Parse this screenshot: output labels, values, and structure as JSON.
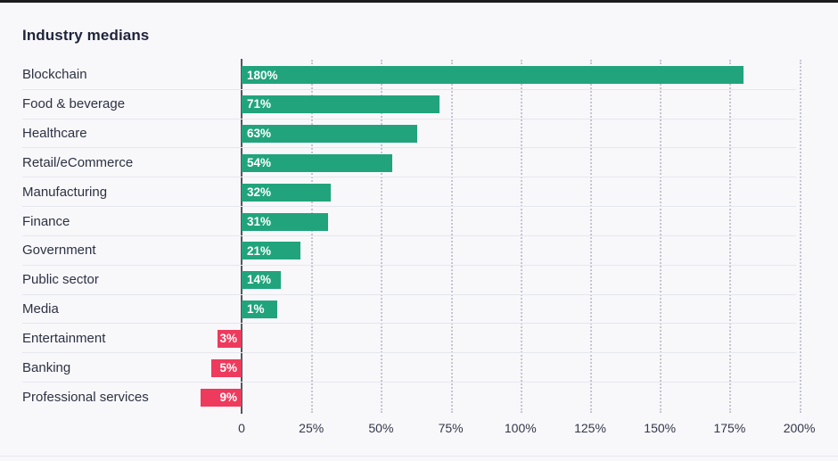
{
  "chart_data": {
    "type": "bar",
    "orientation": "horizontal",
    "title": "Industry medians",
    "categories": [
      "Blockchain",
      "Food & beverage",
      "Healthcare",
      "Retail/eCommerce",
      "Manufacturing",
      "Finance",
      "Government",
      "Public sector",
      "Media",
      "Entertainment",
      "Banking",
      "Professional services"
    ],
    "values": [
      180,
      71,
      63,
      54,
      32,
      31,
      21,
      14,
      1,
      -3,
      -5,
      -9
    ],
    "value_labels": [
      "180%",
      "71%",
      "63%",
      "54%",
      "32%",
      "31%",
      "21%",
      "14%",
      "1%",
      "3%",
      "5%",
      "9%"
    ],
    "x_ticks": [
      "0",
      "25%",
      "50%",
      "75%",
      "100%",
      "125%",
      "150%",
      "175%",
      "200%"
    ],
    "x_tick_values": [
      0,
      25,
      50,
      75,
      100,
      125,
      150,
      175,
      200
    ],
    "xlim": [
      -15,
      214
    ],
    "grid": "vertical-dotted",
    "legend": "none",
    "colors": {
      "positive_bar": "#21a47c",
      "negative_bar": "#ee3a5d",
      "bar_label_text": "#ffffff",
      "category_text": "#2d3142",
      "tick_text": "#33364a",
      "axis_line": "#54565f",
      "gridline": "#bcbdc9",
      "row_separator": "#e6e6ee",
      "background": "#f8f8fb",
      "top_border": "#1c1c1e"
    }
  }
}
